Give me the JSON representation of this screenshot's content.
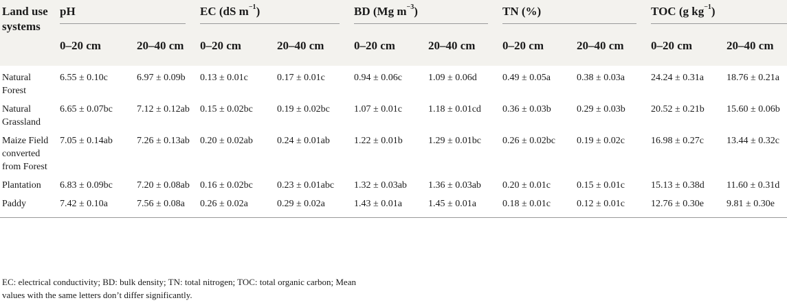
{
  "table": {
    "corner_header": "Land use systems",
    "groups": [
      {
        "label": "pH",
        "unit_sup": ""
      },
      {
        "label": "EC (dS m",
        "unit_sup": "−1",
        "tail": ")"
      },
      {
        "label": "BD (Mg m",
        "unit_sup": "−3",
        "tail": ")"
      },
      {
        "label": "TN (%)",
        "unit_sup": ""
      },
      {
        "label": "TOC (g kg",
        "unit_sup": "−1",
        "tail": ")"
      }
    ],
    "depths": [
      "0–20 cm",
      "20–40 cm"
    ],
    "rows": [
      {
        "land_use": "Natural Forest",
        "values": [
          "6.55 ± 0.10c",
          "6.97 ± 0.09b",
          "0.13 ± 0.01c",
          "0.17 ± 0.01c",
          "0.94 ± 0.06c",
          "1.09 ± 0.06d",
          "0.49 ± 0.05a",
          "0.38 ± 0.03a",
          "24.24 ± 0.31a",
          "18.76 ± 0.21a"
        ]
      },
      {
        "land_use": "Natural Grassland",
        "values": [
          "6.65 ± 0.07bc",
          "7.12 ± 0.12ab",
          "0.15 ± 0.02bc",
          "0.19 ± 0.02bc",
          "1.07 ± 0.01c",
          "1.18 ± 0.01cd",
          "0.36 ± 0.03b",
          "0.29 ± 0.03b",
          "20.52 ± 0.21b",
          "15.60 ± 0.06b"
        ]
      },
      {
        "land_use": "Maize Field converted from Forest",
        "values": [
          "7.05 ± 0.14ab",
          "7.26 ± 0.13ab",
          "0.20 ± 0.02ab",
          "0.24 ± 0.01ab",
          "1.22 ± 0.01b",
          "1.29 ± 0.01bc",
          "0.26 ± 0.02bc",
          "0.19 ± 0.02c",
          "16.98 ± 0.27c",
          "13.44 ± 0.32c"
        ]
      },
      {
        "land_use": "Plantation",
        "values": [
          "6.83 ± 0.09bc",
          "7.20 ± 0.08ab",
          "0.16 ± 0.02bc",
          "0.23 ± 0.01abc",
          "1.32 ± 0.03ab",
          "1.36 ± 0.03ab",
          "0.20 ± 0.01c",
          "0.15 ± 0.01c",
          "15.13 ± 0.38d",
          "11.60 ± 0.31d"
        ]
      },
      {
        "land_use": "Paddy",
        "values": [
          "7.42 ± 0.10a",
          "7.56 ± 0.08a",
          "0.26 ± 0.02a",
          "0.29 ± 0.02a",
          "1.43 ± 0.01a",
          "1.45 ± 0.01a",
          "0.18 ± 0.01c",
          "0.12 ± 0.01c",
          "12.76 ± 0.30e",
          "9.81 ± 0.30e"
        ]
      }
    ]
  },
  "footnote": "EC: electrical conductivity; BD: bulk density; TN: total nitrogen; TOC: total organic carbon; Mean values with the same letters don’t differ significantly."
}
